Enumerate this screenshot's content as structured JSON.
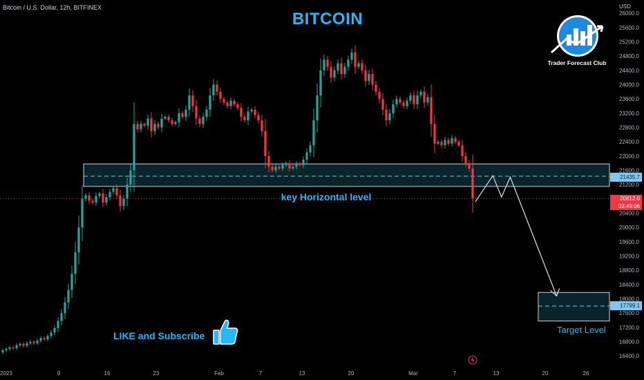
{
  "header": {
    "symbol": "Bitcoin / U.S. Dollar, 12h, BITFINEX",
    "currency": "USD"
  },
  "annotations": {
    "title": "BITCOIN",
    "key_level_label": "key Horizontal level",
    "cta": "LIKE and Subscribe",
    "target_label": "Target Level",
    "logo_text": "Trader Forecast Club"
  },
  "price_badges": {
    "level": "21435.7",
    "current_price": "20812.0",
    "countdown": "03:49:06",
    "target": "17799.1"
  },
  "icons": {
    "logo": "bar-chart-arrow-logo-icon",
    "thumb": "thumbs-up-icon",
    "flash": "lightning-icon"
  },
  "colors": {
    "background": "#000000",
    "accent": "#29b6f6",
    "up": "#26a69a",
    "down": "#f23645",
    "zone_border": "#d1d4dc",
    "zone_fill": "#0b2a33"
  },
  "chart_data": {
    "type": "candlestick",
    "title": "BITCOIN",
    "y_axis": {
      "ticks": [
        26000,
        25600,
        25200,
        24800,
        24400,
        24000,
        23600,
        23200,
        22800,
        22400,
        22000,
        21600,
        21200,
        20400,
        20000,
        19600,
        19200,
        18800,
        18400,
        18000,
        17600,
        17200,
        16800,
        16400
      ],
      "labels": [
        "26000.0",
        "25600.0",
        "25200.0",
        "24800.0",
        "24400.0",
        "24000.0",
        "23600.0",
        "23200.0",
        "22800.0",
        "22400.0",
        "22000.0",
        "21600.0",
        "21200.0",
        "20400.0",
        "20000.0",
        "19600.0",
        "19200.0",
        "18800.0",
        "18400.0",
        "18000.0",
        "17600.0",
        "17200.0",
        "16800.0",
        "16400.0"
      ],
      "ylim": [
        16250,
        26100
      ]
    },
    "x_axis": {
      "ticks": [
        "2023",
        "9",
        "16",
        "23",
        "Feb",
        "7",
        "13",
        "20",
        "Mar",
        "7",
        "13",
        "20",
        "26"
      ]
    },
    "key_zone": {
      "low": 21150,
      "high": 21780,
      "mid": 21435.7
    },
    "target_zone": {
      "low": 17380,
      "high": 18180,
      "mid": 17799.1
    },
    "current_price": 20812.0,
    "projection_path": [
      [
        0,
        20720
      ],
      [
        6,
        21450
      ],
      [
        9,
        20850
      ],
      [
        12,
        21410
      ],
      [
        28,
        18080
      ]
    ],
    "candles_close": [
      16560,
      16600,
      16640,
      16620,
      16700,
      16740,
      16690,
      16760,
      16800,
      16760,
      16830,
      16900,
      16870,
      16960,
      17060,
      17180,
      17380,
      17600,
      17900,
      18250,
      18700,
      19300,
      20000,
      20800,
      20900,
      20750,
      20700,
      20880,
      20950,
      20700,
      20850,
      21000,
      21100,
      20900,
      20600,
      20800,
      21200,
      21600,
      22900,
      22750,
      22900,
      22850,
      23050,
      22700,
      22900,
      22800,
      23050,
      23100,
      23000,
      22900,
      22950,
      23200,
      23100,
      23300,
      23700,
      23400,
      23050,
      22900,
      23100,
      23300,
      23700,
      24000,
      23800,
      23600,
      23500,
      23400,
      23550,
      23450,
      23350,
      23100,
      23000,
      23250,
      23300,
      23150,
      23000,
      22700,
      22000,
      21700,
      21600,
      21700,
      21650,
      21750,
      21800,
      21650,
      21700,
      21800,
      21750,
      21900,
      22100,
      22300,
      23000,
      23700,
      24400,
      24700,
      24500,
      24200,
      24400,
      24600,
      24300,
      24500,
      24700,
      24900,
      24500,
      24600,
      24400,
      24100,
      24300,
      24000,
      23800,
      23600,
      23300,
      23000,
      23200,
      23450,
      23600,
      23500,
      23400,
      23550,
      23700,
      23450,
      23700,
      23800,
      23500,
      23650,
      22900,
      22350,
      22400,
      22300,
      22450,
      22350,
      22500,
      22400,
      22300,
      22000,
      21800,
      21650,
      20812
    ]
  }
}
